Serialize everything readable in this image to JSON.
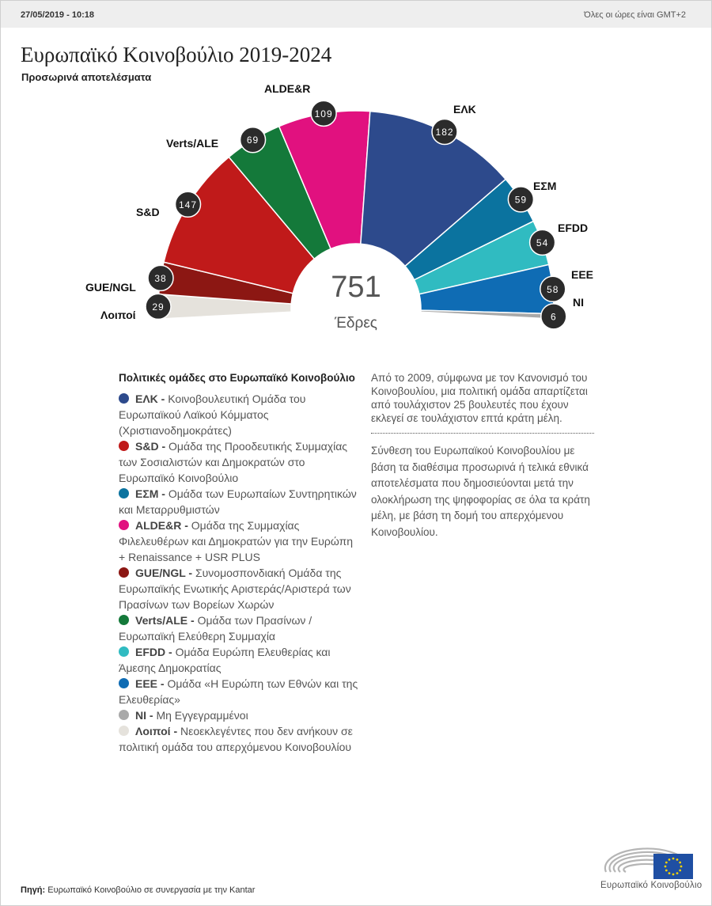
{
  "header": {
    "date": "27/05/2019 - 10:18",
    "timezone_note": "Όλες οι ώρες είναι GMT+2"
  },
  "title": "Ευρωπαϊκό Κοινοβούλιο 2019-2024",
  "subtitle": "Προσωρινά αποτελέσματα",
  "center": {
    "total": "751",
    "label": "Έδρες"
  },
  "chart_data": {
    "type": "pie",
    "shape": "semicircle (hemicycle)",
    "total": 751,
    "categories": [
      "Λοιποί",
      "GUE/NGL",
      "S&D",
      "Verts/ALE",
      "ALDE&R",
      "ΕΛΚ",
      "ΕΣΜ",
      "EFDD",
      "EEE",
      "NI"
    ],
    "values": [
      29,
      38,
      147,
      69,
      109,
      182,
      59,
      54,
      58,
      6
    ],
    "colors": [
      "#e5e2dc",
      "#8c1713",
      "#c01a1a",
      "#14793a",
      "#e1117f",
      "#2d4a8c",
      "#0b739f",
      "#30bbc1",
      "#0f6cb4",
      "#a9a9a9"
    ]
  },
  "legend": {
    "title": "Πολιτικές ομάδες στο Ευρωπαϊκό Κοινοβούλιο",
    "items": [
      {
        "abbr": "ΕΛΚ -",
        "desc": "Κοινοβουλευτική Ομάδα του Ευρωπαϊκού Λαϊκού Κόμματος (Χριστιανοδημοκράτες)",
        "color": "#2d4a8c"
      },
      {
        "abbr": "S&D -",
        "desc": "Ομάδα της Προοδευτικής Συμμαχίας των Σοσιαλιστών και Δημοκρατών στο Ευρωπαϊκό Κοινοβούλιο",
        "color": "#c01a1a"
      },
      {
        "abbr": "ΕΣΜ -",
        "desc": "Ομάδα των Ευρωπαίων Συντηρητικών και Μεταρρυθμιστών",
        "color": "#0b739f"
      },
      {
        "abbr": "ALDE&R -",
        "desc": "Ομάδα της Συμμαχίας Φιλελευθέρων και Δημοκρατών για την Ευρώπη + Renaissance + USR PLUS",
        "color": "#e1117f"
      },
      {
        "abbr": "GUE/NGL -",
        "desc": "Συνομοσπονδιακή Ομάδα της Ευρωπαϊκής Ενωτικής Αριστεράς/Αριστερά των Πρασίνων των Βορείων Χωρών",
        "color": "#8c1713"
      },
      {
        "abbr": "Verts/ALE -",
        "desc": "Ομάδα των Πρασίνων / Ευρωπαϊκή Ελεύθερη Συμμαχία",
        "color": "#14793a"
      },
      {
        "abbr": "EFDD -",
        "desc": "Ομάδα Ευρώπη Ελευθερίας και Άμεσης Δημοκρατίας",
        "color": "#30bbc1"
      },
      {
        "abbr": "EEE -",
        "desc": "Ομάδα «Η Ευρώπη των Εθνών και της Ελευθερίας»",
        "color": "#0f6cb4"
      },
      {
        "abbr": "NI -",
        "desc": "Μη Εγγεγραμμένοι",
        "color": "#a9a9a9"
      },
      {
        "abbr": "Λοιποί -",
        "desc": "Νεοεκλεγέντες που δεν ανήκουν σε πολιτική ομάδα του απερχόμενου Κοινοβουλίου",
        "color": "#e5e2dc"
      }
    ]
  },
  "notes": {
    "rule": "Από το 2009, σύμφωνα με τον Κανονισμό του Κοινοβουλίου, μια πολιτική ομάδα απαρτίζεται από τουλάχιστον 25 βουλευτές που έχουν εκλεγεί σε τουλάχιστον επτά κράτη μέλη.",
    "composition": "Σύνθεση του Ευρωπαϊκού Κοινοβουλίου με βάση τα διαθέσιμα προσωρινά ή τελικά εθνικά αποτελέσματα που δημοσιεύονται μετά την ολοκλήρωση της ψηφοφορίας σε όλα τα κράτη μέλη, με βάση τη δομή του απερχόμενου Κοινοβουλίου."
  },
  "footer": {
    "source_label": "Πηγή:",
    "source_text": "Ευρωπαϊκό Κοινοβούλιο σε συνεργασία με την Kantar",
    "logo_text": "Ευρωπαϊκό Κοινοβούλιο"
  }
}
